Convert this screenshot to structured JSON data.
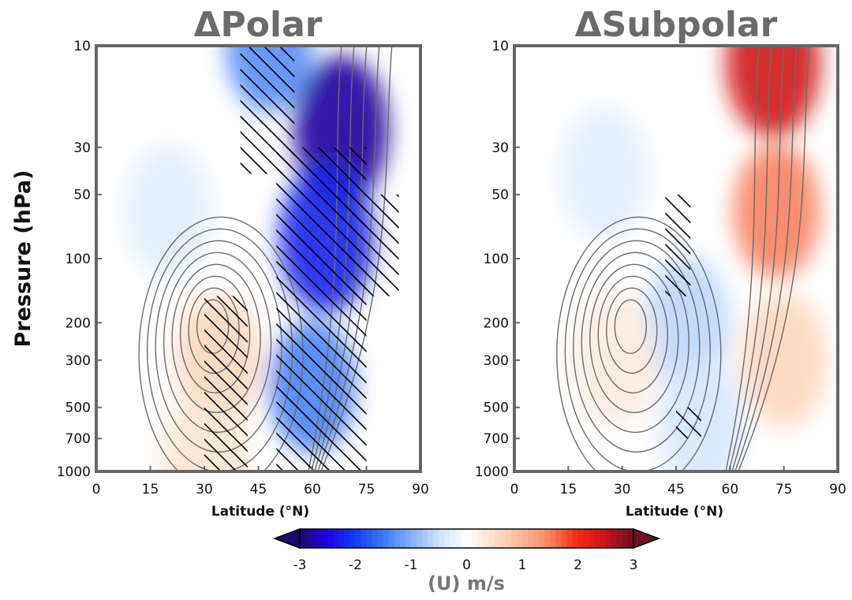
{
  "chart_data": [
    {
      "type": "heatmap",
      "title": "ΔPolar",
      "xlabel": "Latitude (°N)",
      "ylabel": "Pressure (hPa)",
      "xlim": [
        0,
        90
      ],
      "ylim": [
        1000,
        10
      ],
      "yscale": "log",
      "x_ticks": [
        "0",
        "15",
        "30",
        "45",
        "60",
        "75",
        "90"
      ],
      "y_ticks": [
        "10",
        "30",
        "50",
        "100",
        "200",
        "300",
        "500",
        "700",
        "1000"
      ],
      "fill_features": [
        {
          "lat": 68,
          "p": 25,
          "value": -2.8
        },
        {
          "lat": 64,
          "p": 80,
          "value": -2.2
        },
        {
          "lat": 60,
          "p": 400,
          "value": -1.4
        },
        {
          "lat": 48,
          "p": 10,
          "value": -1.3
        },
        {
          "lat": 34,
          "p": 300,
          "value": 0.6
        },
        {
          "lat": 30,
          "p": 900,
          "value": 0.4
        },
        {
          "lat": 20,
          "p": 60,
          "value": -0.3
        }
      ],
      "hatched_regions": [
        {
          "lat": [
            40,
            55
          ],
          "p": [
            10,
            40
          ]
        },
        {
          "lat": [
            50,
            75
          ],
          "p": [
            30,
            1000
          ]
        },
        {
          "lat": [
            70,
            84
          ],
          "p": [
            50,
            150
          ]
        },
        {
          "lat": [
            30,
            42
          ],
          "p": [
            150,
            1000
          ]
        }
      ],
      "jet_core": {
        "lat": 32,
        "p": 200
      }
    },
    {
      "type": "heatmap",
      "title": "ΔSubpolar",
      "xlabel": "Latitude (°N)",
      "ylabel": "",
      "xlim": [
        0,
        90
      ],
      "ylim": [
        1000,
        10
      ],
      "yscale": "log",
      "x_ticks": [
        "0",
        "15",
        "30",
        "45",
        "60",
        "75",
        "90"
      ],
      "y_ticks": [
        "10",
        "30",
        "50",
        "100",
        "200",
        "300",
        "500",
        "700",
        "1000"
      ],
      "fill_features": [
        {
          "lat": 72,
          "p": 12,
          "value": 2.4
        },
        {
          "lat": 73,
          "p": 60,
          "value": 1.5
        },
        {
          "lat": 75,
          "p": 300,
          "value": 0.6
        },
        {
          "lat": 48,
          "p": 200,
          "value": -0.6
        },
        {
          "lat": 52,
          "p": 600,
          "value": -0.4
        },
        {
          "lat": 25,
          "p": 40,
          "value": -0.3
        },
        {
          "lat": 28,
          "p": 300,
          "value": 0.3
        }
      ],
      "hatched_regions": [
        {
          "lat": [
            42,
            49
          ],
          "p": [
            50,
            150
          ]
        },
        {
          "lat": [
            45,
            52
          ],
          "p": [
            500,
            700
          ]
        }
      ],
      "jet_core": {
        "lat": 32,
        "p": 200
      }
    }
  ],
  "colorbar": {
    "ticks": [
      "-3",
      "-2",
      "-1",
      "0",
      "1",
      "2",
      "3"
    ],
    "label": "(U) m/s",
    "range": [
      -3,
      3
    ]
  }
}
